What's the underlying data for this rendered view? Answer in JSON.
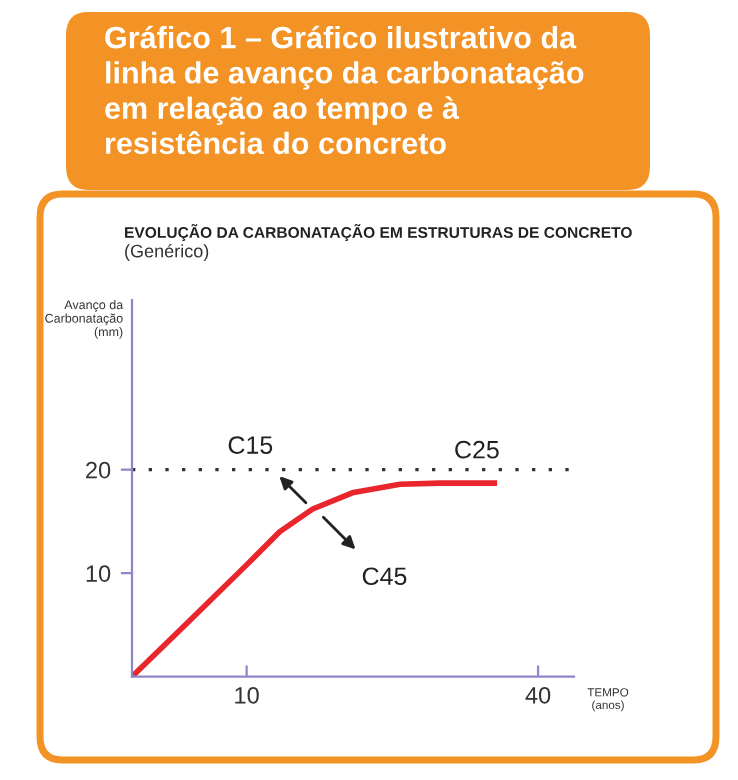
{
  "chart_data": {
    "type": "line",
    "title": "Gráfico 1 – Gráfico ilustrativo da\nlinha de avanço da carbonatação\nem relação ao tempo e à\nresistência do concreto",
    "subtitle": "EVOLUÇÃO DA CARBONATAÇÃO EM ESTRUTURAS DE CONCRETO",
    "ylabel": "Avanço da\nCarbonatação\n(mm)",
    "xlabel": "TEMPO\n(anos)",
    "x": [
      -1.8,
      3.7,
      10.0,
      13.4,
      16.8,
      21.0,
      25.8,
      29.9,
      35.5
    ],
    "series": [
      {
        "color": "#e8262b",
        "values": [
          0,
          5.0,
          10.8,
          14.0,
          16.2,
          17.8,
          18.6,
          18.7,
          18.7
        ]
      }
    ],
    "xlim": [
      -1.8,
      43.7
    ],
    "xticks": [
      10,
      40
    ],
    "ylim": [
      0,
      36.4
    ],
    "yticks": [
      10,
      20
    ],
    "ref_lines": [
      {
        "axis": "y",
        "value": 20,
        "color": "#333333",
        "line_style": "dotted"
      }
    ],
    "annotations": [
      "(Genérico)",
      {
        "text": "C15",
        "x": 16.1,
        "y": 16.8
      },
      {
        "text": "C45",
        "x": 17.9,
        "y": 15.4
      },
      {
        "text": "C25",
        "x": 33.7,
        "y": 20.6
      }
    ],
    "grid": false,
    "legend": false,
    "marker": "none",
    "line_style": "solid"
  }
}
